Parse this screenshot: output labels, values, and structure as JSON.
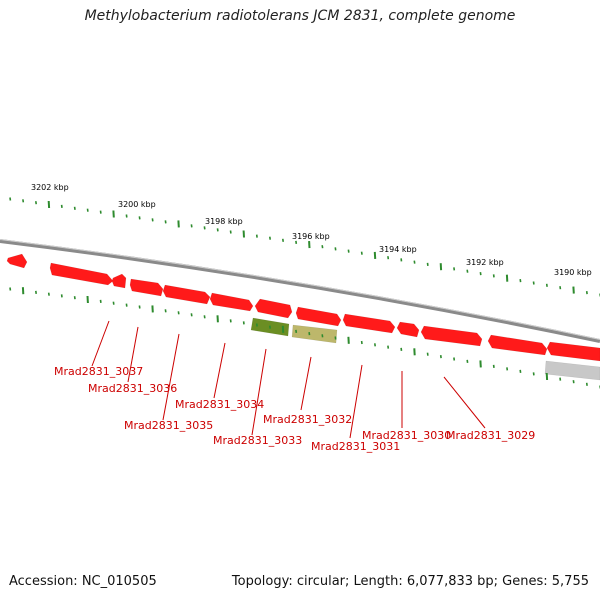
{
  "title": "Methylobacterium radiotolerans JCM 2831, complete genome",
  "footer": {
    "accession": "Accession: NC_010505",
    "stats": "Topology: circular; Length: 6,077,833 bp; Genes: 5,755"
  },
  "scale": {
    "labels": [
      "3202 kbp",
      "3200 kbp",
      "3198 kbp",
      "3196 kbp",
      "3194 kbp",
      "3192 kbp",
      "3190 kbp"
    ],
    "tick_color": "#2e8b2e"
  },
  "colors": {
    "backbone": "#8a8a8a",
    "gene": "#ff1a1a",
    "gene_other": "#6b8e23",
    "gene_pseudo": "#bdb76b",
    "gene_gray": "#c8c8c8",
    "label": "#cc0000"
  },
  "genes": [
    {
      "name": "Mrad2831_3037"
    },
    {
      "name": "Mrad2831_3036"
    },
    {
      "name": "Mrad2831_3035"
    },
    {
      "name": "Mrad2831_3034"
    },
    {
      "name": "Mrad2831_3033"
    },
    {
      "name": "Mrad2831_3032"
    },
    {
      "name": "Mrad2831_3031"
    },
    {
      "name": "Mrad2831_3030"
    },
    {
      "name": "Mrad2831_3029"
    }
  ]
}
